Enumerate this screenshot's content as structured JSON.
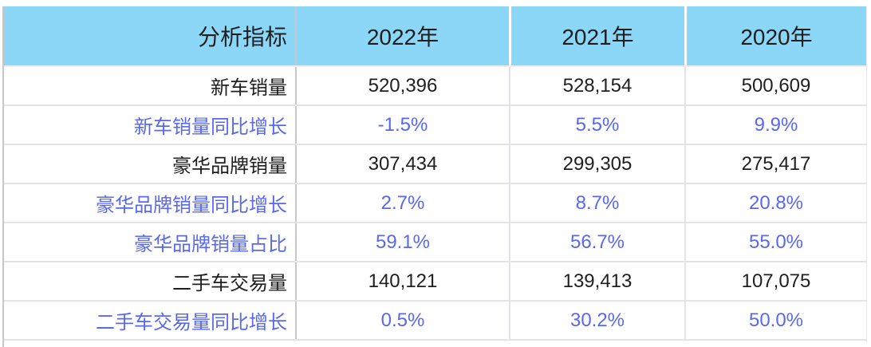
{
  "chart_data": {
    "type": "table",
    "columns": [
      "分析指标",
      "2022年",
      "2021年",
      "2020年"
    ],
    "rows": [
      {
        "indicator": "新车销量",
        "display": [
          "520,396",
          "528,154",
          "500,609"
        ],
        "values": [
          520396,
          528154,
          500609
        ],
        "emphasis": false
      },
      {
        "indicator": "新车销量同比增长",
        "display": [
          "-1.5%",
          "5.5%",
          "9.9%"
        ],
        "values": [
          -1.5,
          5.5,
          9.9
        ],
        "emphasis": true
      },
      {
        "indicator": "豪华品牌销量",
        "display": [
          "307,434",
          "299,305",
          "275,417"
        ],
        "values": [
          307434,
          299305,
          275417
        ],
        "emphasis": false
      },
      {
        "indicator": "豪华品牌销量同比增长",
        "display": [
          "2.7%",
          "8.7%",
          "20.8%"
        ],
        "values": [
          2.7,
          8.7,
          20.8
        ],
        "emphasis": true
      },
      {
        "indicator": "豪华品牌销量占比",
        "display": [
          "59.1%",
          "56.7%",
          "55.0%"
        ],
        "values": [
          59.1,
          56.7,
          55.0
        ],
        "emphasis": true
      },
      {
        "indicator": "二手车交易量",
        "display": [
          "140,121",
          "139,413",
          "107,075"
        ],
        "values": [
          140121,
          139413,
          107075
        ],
        "emphasis": false
      },
      {
        "indicator": "二手车交易量同比增长",
        "display": [
          "0.5%",
          "30.2%",
          "50.0%"
        ],
        "values": [
          0.5,
          30.2,
          50.0
        ],
        "emphasis": true
      }
    ],
    "layout": {
      "header_row": true,
      "grid": "light-gray horizontal separators, gray divider after first column"
    }
  },
  "colors": {
    "header_bg": "#8cd7f8",
    "emphasis_text": "#5868f0",
    "normal_text": "#1f1f1f",
    "row_border": "#e3e3e9",
    "column_divider": "#c5c9cc",
    "outer_border": "#c9c6c3"
  }
}
